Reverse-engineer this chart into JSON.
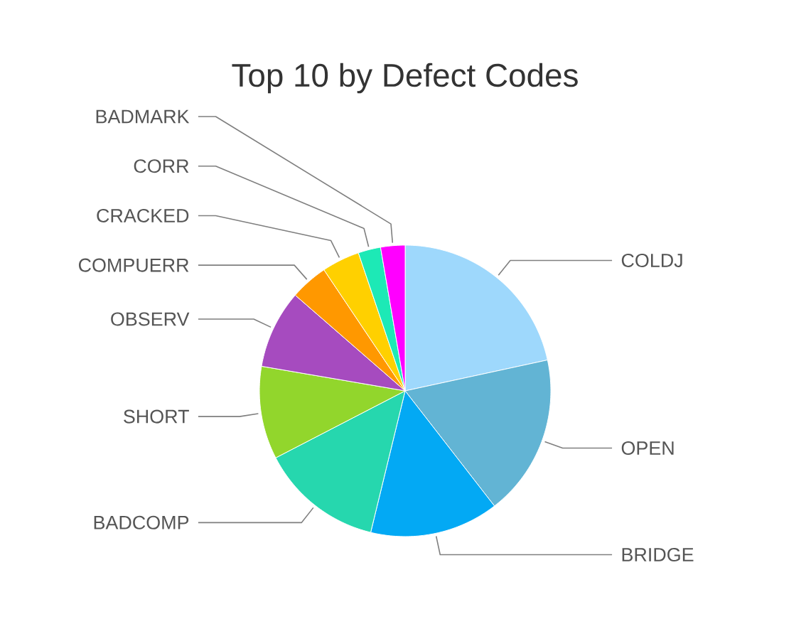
{
  "chart_data": {
    "type": "pie",
    "title": "Top 10 by Defect Codes",
    "categories": [
      "COLDJ",
      "OPEN",
      "BRIDGE",
      "BADCOMP",
      "SHORT",
      "OBSERV",
      "COMPUERR",
      "CRACKED",
      "CORR",
      "BADMARK"
    ],
    "values": [
      21.6,
      17.9,
      14.3,
      13.6,
      10.3,
      8.7,
      4.2,
      4.2,
      2.5,
      2.7
    ],
    "colors": [
      "#9ed8fc",
      "#62b4d4",
      "#03a9f4",
      "#26d7ae",
      "#92d62c",
      "#a64bbf",
      "#ff9800",
      "#ffd000",
      "#1de9b6",
      "#ff00ff"
    ]
  }
}
